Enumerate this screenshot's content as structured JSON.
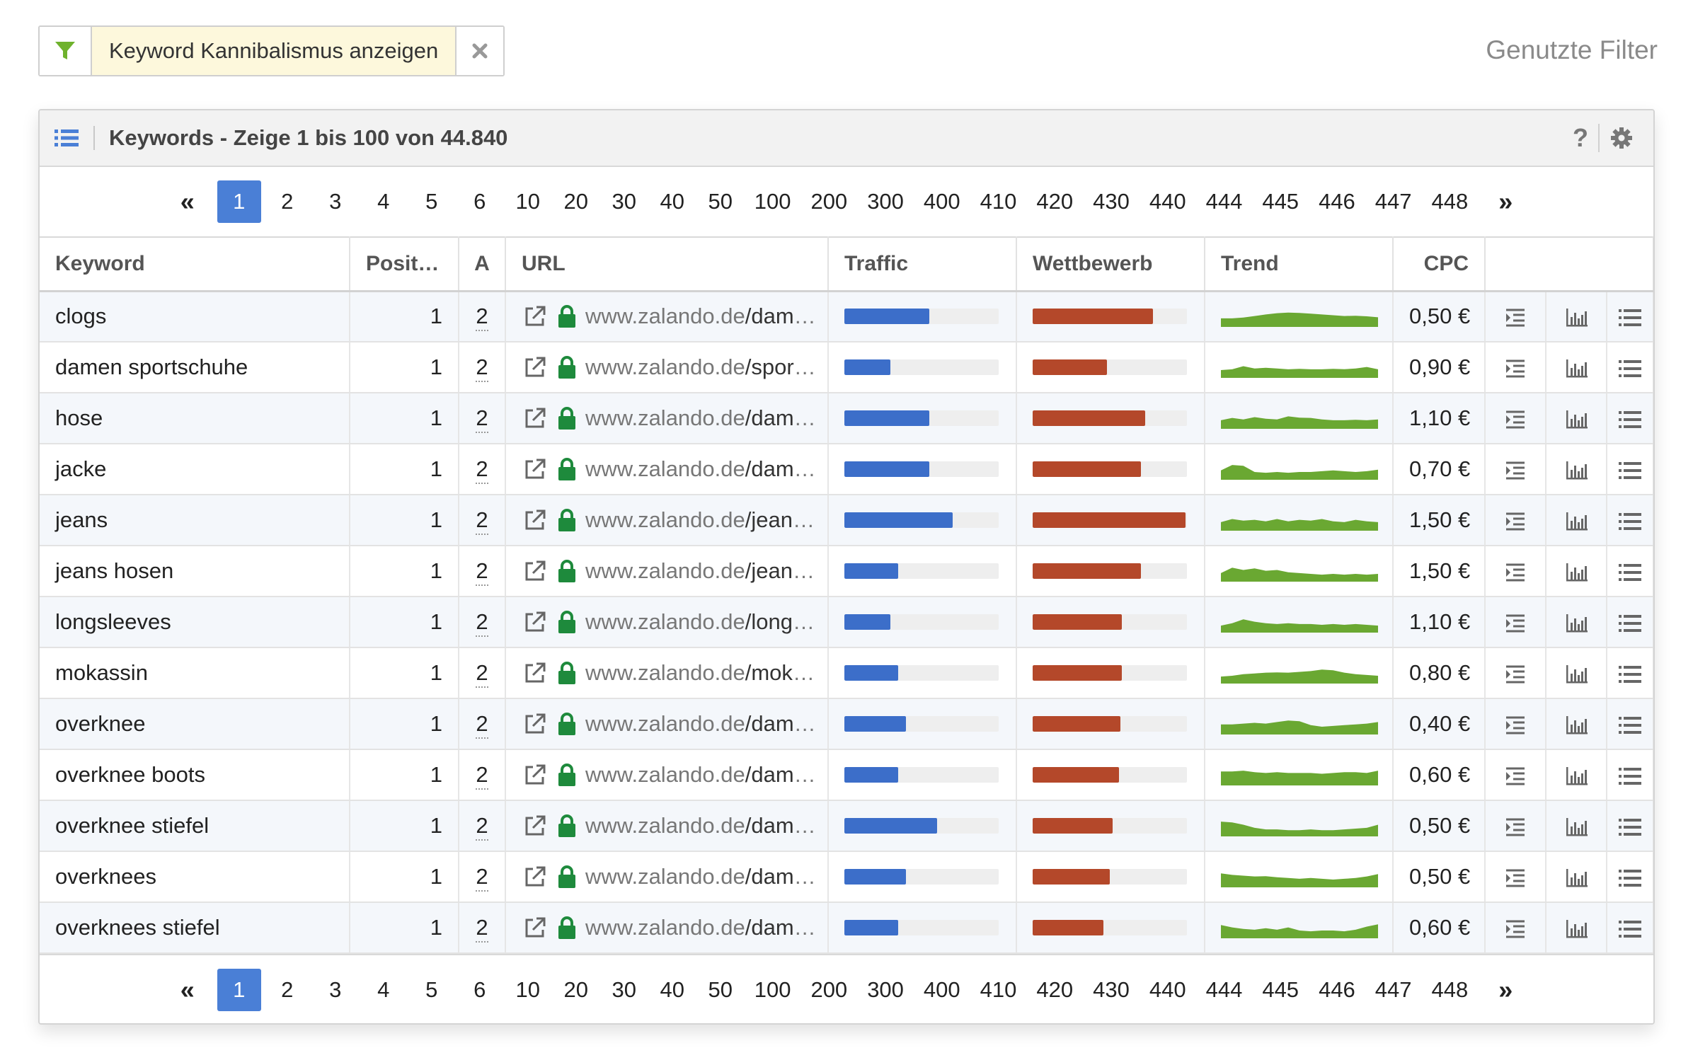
{
  "filter": {
    "label": "Keyword Kannibalismus anzeigen",
    "icon": "filter-icon",
    "close_icon": "close-icon",
    "used_filters_label": "Genutzte Filter"
  },
  "panel": {
    "title": "Keywords - Zeige 1 bis 100 von 44.840",
    "help_label": "?"
  },
  "pagination": {
    "first_label": "«",
    "last_label": "»",
    "active": "1",
    "pages": [
      "1",
      "2",
      "3",
      "4",
      "5",
      "6",
      "10",
      "20",
      "30",
      "40",
      "50",
      "100",
      "200",
      "300",
      "400",
      "410",
      "420",
      "430",
      "440",
      "444",
      "445",
      "446",
      "447",
      "448"
    ]
  },
  "table": {
    "columns": [
      "Keyword",
      "Positi…",
      "A",
      "URL",
      "Traffic",
      "Wettbewerb",
      "Trend",
      "CPC"
    ],
    "colors": {
      "traffic": "#3c6ec9",
      "competition": "#b4482a",
      "trend": "#6aa832",
      "lock": "#1e8a3c"
    },
    "rows": [
      {
        "keyword": "clogs",
        "position": "1",
        "a": "2",
        "url_host": "www.zalando.de",
        "url_path": "/damen-clogs/",
        "traffic": 0.55,
        "competition": 0.78,
        "trend": [
          0.55,
          0.55,
          0.6,
          0.7,
          0.8,
          0.88,
          0.92,
          0.9,
          0.85,
          0.8,
          0.75,
          0.7,
          0.72,
          0.68,
          0.62
        ],
        "cpc": "0,50 €"
      },
      {
        "keyword": "damen sportschuhe",
        "position": "1",
        "a": "2",
        "url_host": "www.zalando.de",
        "url_path": "/sportschuhe-damen/",
        "traffic": 0.3,
        "competition": 0.48,
        "trend": [
          0.5,
          0.55,
          0.75,
          0.6,
          0.65,
          0.6,
          0.55,
          0.58,
          0.55,
          0.55,
          0.58,
          0.56,
          0.6,
          0.7,
          0.55
        ],
        "cpc": "0,90 €"
      },
      {
        "keyword": "hose",
        "position": "1",
        "a": "2",
        "url_host": "www.zalando.de",
        "url_path": "/damenbekleidung-hosen/",
        "traffic": 0.55,
        "competition": 0.73,
        "trend": [
          0.55,
          0.7,
          0.6,
          0.75,
          0.65,
          0.6,
          0.8,
          0.72,
          0.7,
          0.6,
          0.55,
          0.55,
          0.58,
          0.55,
          0.6
        ],
        "cpc": "1,10 €"
      },
      {
        "keyword": "jacke",
        "position": "1",
        "a": "2",
        "url_host": "www.zalando.de",
        "url_path": "/damenbekleidung-jacken/",
        "traffic": 0.55,
        "competition": 0.7,
        "trend": [
          0.6,
          0.95,
          0.9,
          0.5,
          0.45,
          0.5,
          0.45,
          0.5,
          0.5,
          0.55,
          0.6,
          0.55,
          0.5,
          0.55,
          0.65
        ],
        "cpc": "0,70 €"
      },
      {
        "keyword": "jeans",
        "position": "1",
        "a": "2",
        "url_host": "www.zalando.de",
        "url_path": "/jeans-damen/",
        "traffic": 0.7,
        "competition": 0.99,
        "trend": [
          0.55,
          0.75,
          0.65,
          0.7,
          0.6,
          0.75,
          0.6,
          0.7,
          0.65,
          0.75,
          0.6,
          0.55,
          0.7,
          0.6,
          0.55
        ],
        "cpc": "1,50 €"
      },
      {
        "keyword": "jeans hosen",
        "position": "1",
        "a": "2",
        "url_host": "www.zalando.de",
        "url_path": "/jeans-hosen/",
        "traffic": 0.35,
        "competition": 0.7,
        "trend": [
          0.55,
          0.9,
          0.75,
          0.85,
          0.7,
          0.75,
          0.6,
          0.55,
          0.5,
          0.45,
          0.5,
          0.45,
          0.5,
          0.45,
          0.5
        ],
        "cpc": "1,50 €"
      },
      {
        "keyword": "longsleeves",
        "position": "1",
        "a": "2",
        "url_host": "www.zalando.de",
        "url_path": "/longsleeves-damen/",
        "traffic": 0.3,
        "competition": 0.58,
        "trend": [
          0.45,
          0.6,
          0.85,
          0.7,
          0.6,
          0.55,
          0.6,
          0.55,
          0.55,
          0.5,
          0.55,
          0.5,
          0.55,
          0.5,
          0.45
        ],
        "cpc": "1,10 €"
      },
      {
        "keyword": "mokassin",
        "position": "1",
        "a": "2",
        "url_host": "www.zalando.de",
        "url_path": "/mokassins-damen/",
        "traffic": 0.35,
        "competition": 0.58,
        "trend": [
          0.45,
          0.5,
          0.6,
          0.65,
          0.7,
          0.72,
          0.7,
          0.75,
          0.8,
          0.9,
          0.85,
          0.7,
          0.6,
          0.55,
          0.5
        ],
        "cpc": "0,80 €"
      },
      {
        "keyword": "overknee",
        "position": "1",
        "a": "2",
        "url_host": "www.zalando.de",
        "url_path": "/damen-overknee-stiefel/",
        "traffic": 0.4,
        "competition": 0.57,
        "trend": [
          0.65,
          0.65,
          0.7,
          0.75,
          0.7,
          0.8,
          0.9,
          0.85,
          0.6,
          0.5,
          0.55,
          0.6,
          0.65,
          0.7,
          0.8
        ],
        "cpc": "0,40 €"
      },
      {
        "keyword": "overknee boots",
        "position": "1",
        "a": "2",
        "url_host": "www.zalando.de",
        "url_path": "/damen-overknee-boots/",
        "traffic": 0.35,
        "competition": 0.56,
        "trend": [
          0.9,
          0.9,
          0.95,
          0.85,
          0.8,
          0.85,
          0.8,
          0.8,
          0.8,
          0.75,
          0.8,
          0.85,
          0.85,
          0.8,
          0.95
        ],
        "cpc": "0,60 €"
      },
      {
        "keyword": "overknee stiefel",
        "position": "1",
        "a": "2",
        "url_host": "www.zalando.de",
        "url_path": "/damen-overknee-stiefel/",
        "traffic": 0.6,
        "competition": 0.52,
        "trend": [
          0.95,
          0.9,
          0.75,
          0.55,
          0.45,
          0.45,
          0.4,
          0.4,
          0.45,
          0.4,
          0.4,
          0.45,
          0.5,
          0.55,
          0.75
        ],
        "cpc": "0,50 €"
      },
      {
        "keyword": "overknees",
        "position": "1",
        "a": "2",
        "url_host": "www.zalando.de",
        "url_path": "/damen-overknees/",
        "traffic": 0.4,
        "competition": 0.5,
        "trend": [
          0.9,
          0.8,
          0.75,
          0.7,
          0.72,
          0.65,
          0.6,
          0.55,
          0.6,
          0.55,
          0.5,
          0.55,
          0.6,
          0.7,
          0.85
        ],
        "cpc": "0,50 €"
      },
      {
        "keyword": "overknees stiefel",
        "position": "1",
        "a": "2",
        "url_host": "www.zalando.de",
        "url_path": "/damen-overknees-stiefel/",
        "traffic": 0.35,
        "competition": 0.46,
        "trend": [
          0.85,
          0.7,
          0.6,
          0.55,
          0.65,
          0.55,
          0.7,
          0.5,
          0.45,
          0.5,
          0.5,
          0.45,
          0.55,
          0.75,
          0.9
        ],
        "cpc": "0,60 €"
      }
    ],
    "row_action_icons": [
      "serp-list-icon",
      "bar-chart-icon",
      "details-list-icon"
    ]
  }
}
